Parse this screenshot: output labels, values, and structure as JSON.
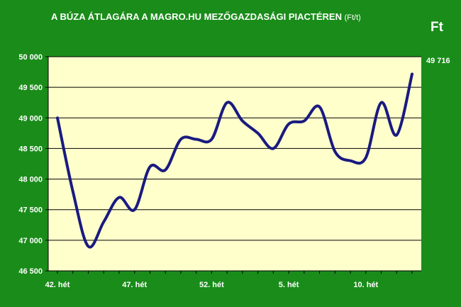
{
  "title": "A BÚZA ÁTLAGÁRA A MAGRO.HU MEZŐGAZDASÁGI PIACTÉREN",
  "title_unit": "(Ft/t)",
  "unit_label": "Ft",
  "last_value_label": "49 716",
  "colors": {
    "background": "#1a8c1a",
    "plot_area": "#ffffcc",
    "line": "#1a1a80",
    "grid": "#000000",
    "text": "#ffffff"
  },
  "chart_data": {
    "type": "line",
    "title": "A BÚZA ÁTLAGÁRA A MAGRO.HU MEZŐGAZDASÁGI PIACTÉREN (Ft/t)",
    "ylabel": "Ft",
    "ylim": [
      46500,
      50000
    ],
    "yticks": [
      46500,
      47000,
      47500,
      48000,
      48500,
      49000,
      49500,
      50000
    ],
    "ytick_labels": [
      "46 500",
      "47 000",
      "47 500",
      "48 000",
      "48 500",
      "49 000",
      "49 500",
      "50 000"
    ],
    "x_tick_labels": [
      {
        "index": 0,
        "label": "42. hét"
      },
      {
        "index": 5,
        "label": "47. hét"
      },
      {
        "index": 10,
        "label": "52. hét"
      },
      {
        "index": 15,
        "label": "5. hét"
      },
      {
        "index": 20,
        "label": "10. hét"
      }
    ],
    "grid": true,
    "values": [
      49000,
      47800,
      46900,
      47300,
      47700,
      47500,
      48200,
      48150,
      48650,
      48650,
      48650,
      49250,
      48950,
      48750,
      48500,
      48900,
      48950,
      49180,
      48450,
      48300,
      48350,
      49250,
      48720,
      49716
    ]
  }
}
